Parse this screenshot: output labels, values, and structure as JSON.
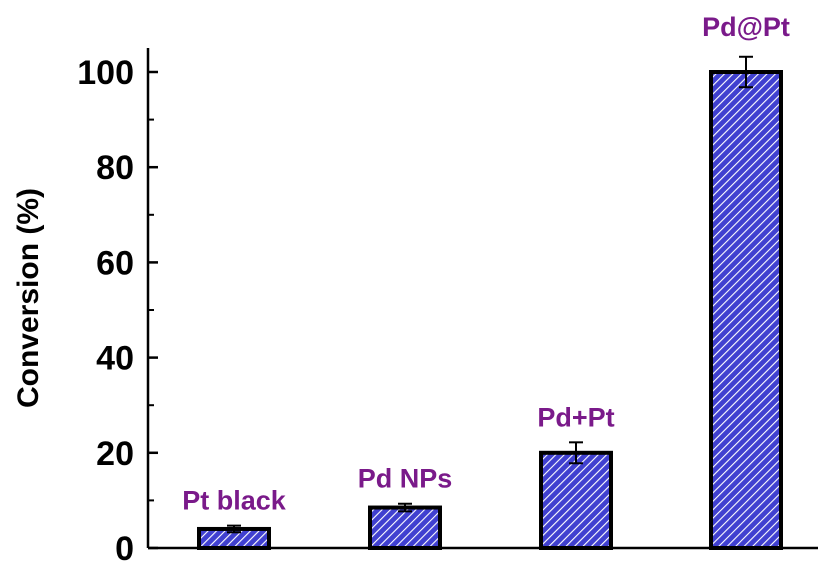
{
  "chart_data": {
    "type": "bar",
    "title": "",
    "xlabel": "",
    "ylabel": "Conversion (%)",
    "ylim": [
      0,
      100
    ],
    "yticks": [
      "0",
      "20",
      "40",
      "60",
      "80",
      "100"
    ],
    "categories": [
      "Pt black",
      "Pd NPs",
      "Pd+Pt",
      "Pd@Pt"
    ],
    "values": [
      4,
      8.5,
      20,
      100
    ],
    "errors": [
      0.7,
      0.8,
      2.2,
      3.2
    ],
    "grid": false,
    "legend": "none",
    "colors": {
      "bar_fill": "#4040d0",
      "bar_stripe": "#ffffff",
      "bar_edge": "#000000",
      "label": "#7a1a8a"
    }
  }
}
